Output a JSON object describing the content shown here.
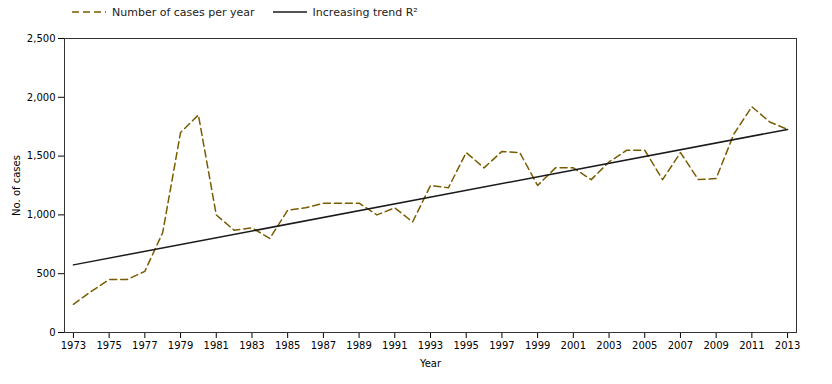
{
  "chart_data": {
    "type": "line",
    "xlabel": "Year",
    "ylabel": "No. of cases",
    "x": [
      1973,
      1974,
      1975,
      1976,
      1977,
      1978,
      1979,
      1980,
      1981,
      1982,
      1983,
      1984,
      1985,
      1986,
      1987,
      1988,
      1989,
      1990,
      1991,
      1992,
      1993,
      1994,
      1995,
      1996,
      1997,
      1998,
      1999,
      2000,
      2001,
      2002,
      2003,
      2004,
      2005,
      2006,
      2007,
      2008,
      2009,
      2010,
      2011,
      2012,
      2013
    ],
    "series": [
      {
        "name": "Number of cases per year",
        "color": "#7a5c00",
        "line_style": "dashed",
        "values": [
          240,
          350,
          450,
          450,
          520,
          850,
          1700,
          1850,
          1000,
          870,
          890,
          800,
          1040,
          1060,
          1100,
          1100,
          1100,
          1000,
          1060,
          940,
          1250,
          1230,
          1530,
          1400,
          1540,
          1530,
          1250,
          1400,
          1400,
          1300,
          1450,
          1550,
          1550,
          1300,
          1530,
          1300,
          1310,
          1690,
          1920,
          1790,
          1727
        ]
      },
      {
        "name": "Increasing trend R²",
        "color": "#1a1a1a",
        "line_style": "solid",
        "x": [
          1973,
          2013
        ],
        "values": [
          575,
          1727
        ]
      }
    ],
    "xlim": [
      1972.5,
      2013.5
    ],
    "xticks": [
      1973,
      1975,
      1977,
      1979,
      1981,
      1983,
      1985,
      1987,
      1989,
      1991,
      1993,
      1995,
      1997,
      1999,
      2001,
      2003,
      2005,
      2007,
      2009,
      2011,
      2013
    ],
    "ylim": [
      0,
      2500
    ],
    "yticks": [
      0,
      500,
      {
        "value": 1000,
        "label": "1,000"
      },
      {
        "value": 1500,
        "label": "1,500"
      },
      {
        "value": 2000,
        "label": "2,000"
      },
      {
        "value": 2500,
        "label": "2,500"
      }
    ],
    "grid": false,
    "legend": "upper left"
  }
}
